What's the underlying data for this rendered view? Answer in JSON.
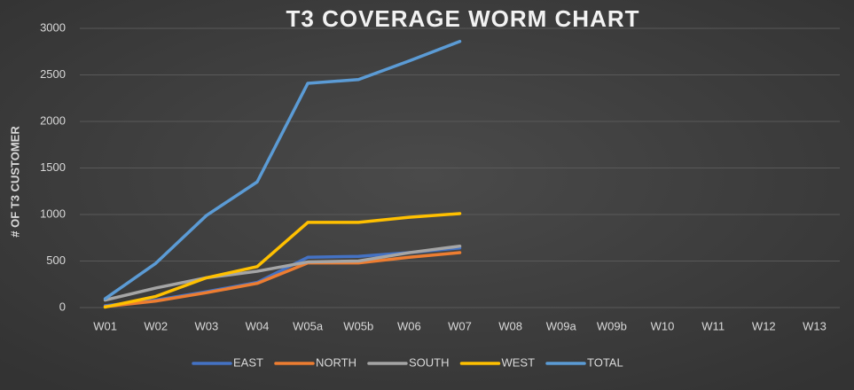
{
  "chart_data": {
    "type": "line",
    "title": "T3 COVERAGE WORM CHART",
    "y_label": "# OF T3 CUSTOMER",
    "categories": [
      "W01",
      "W02",
      "W03",
      "W04",
      "W05a",
      "W05b",
      "W06",
      "W07",
      "W08",
      "W09a",
      "W09b",
      "W10",
      "W11",
      "W12",
      "W13"
    ],
    "series": [
      {
        "name": "EAST",
        "color": "#4472c4",
        "values": [
          20,
          80,
          170,
          270,
          540,
          550,
          590,
          640,
          null,
          null,
          null,
          null,
          null,
          null,
          null
        ]
      },
      {
        "name": "NORTH",
        "color": "#ed7d31",
        "values": [
          10,
          70,
          160,
          260,
          480,
          480,
          540,
          590,
          null,
          null,
          null,
          null,
          null,
          null,
          null
        ]
      },
      {
        "name": "SOUTH",
        "color": "#a5a5a5",
        "values": [
          80,
          210,
          320,
          390,
          490,
          500,
          590,
          660,
          null,
          null,
          null,
          null,
          null,
          null,
          null
        ]
      },
      {
        "name": "WEST",
        "color": "#ffc000",
        "values": [
          5,
          120,
          320,
          440,
          915,
          915,
          970,
          1010,
          null,
          null,
          null,
          null,
          null,
          null,
          null
        ]
      },
      {
        "name": "TOTAL",
        "color": "#5b9bd5",
        "values": [
          95,
          476,
          990,
          1350,
          2410,
          2450,
          2650,
          2860,
          null,
          null,
          null,
          null,
          null,
          null,
          null
        ]
      }
    ],
    "ylim": [
      0,
      3000
    ],
    "yticks": [
      0,
      500,
      1000,
      1500,
      2000,
      2500,
      3000
    ],
    "grid": true,
    "legend": "bottom"
  }
}
